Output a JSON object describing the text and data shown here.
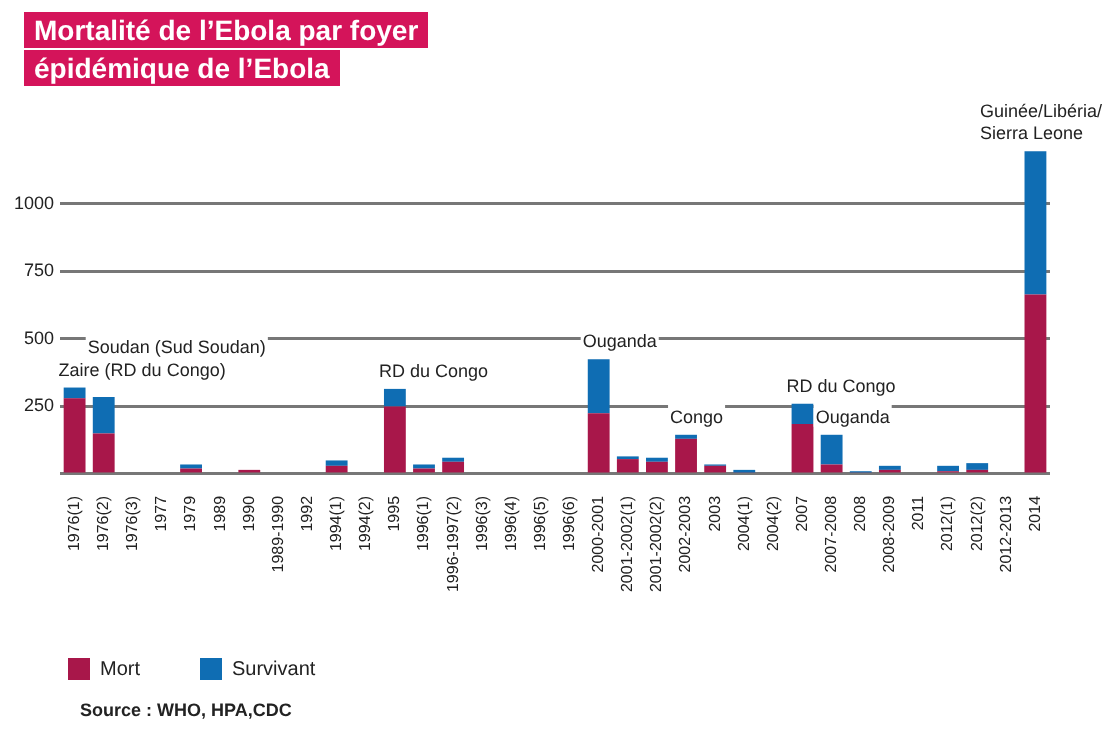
{
  "chart_data": {
    "type": "bar",
    "title": "Mortalité de l’Ebola par foyer épidémique de l’Ebola",
    "stacked": true,
    "categories": [
      "1976(1)",
      "1976(2)",
      "1976(3)",
      "1977",
      "1979",
      "1989",
      "1990",
      "1989-1990",
      "1992",
      "1994(1)",
      "1994(2)",
      "1995",
      "1996(1)",
      "1996-1997(2)",
      "1996(3)",
      "1996(4)",
      "1996(5)",
      "1996(6)",
      "2000-2001",
      "2001-2002(1)",
      "2001-2002(2)",
      "2002-2003",
      "2003",
      "2004(1)",
      "2004(2)",
      "2007",
      "2007-2008",
      "2008",
      "2008-2009",
      "2011",
      "2012(1)",
      "2012(2)",
      "2012-2013",
      "2014"
    ],
    "series": [
      {
        "name": "Mort",
        "color": "#a8174a",
        "values": [
          280,
          150,
          0,
          0,
          20,
          0,
          15,
          0,
          0,
          30,
          0,
          250,
          20,
          45,
          0,
          0,
          0,
          0,
          225,
          55,
          45,
          130,
          30,
          5,
          0,
          185,
          35,
          5,
          15,
          0,
          10,
          15,
          0,
          665
        ]
      },
      {
        "name": "Survivant",
        "color": "#0f6db3",
        "values": [
          40,
          135,
          0,
          0,
          15,
          0,
          0,
          0,
          0,
          20,
          0,
          65,
          15,
          15,
          0,
          0,
          0,
          0,
          200,
          10,
          15,
          15,
          5,
          10,
          0,
          75,
          110,
          5,
          15,
          0,
          20,
          25,
          0,
          530
        ]
      }
    ],
    "ylim": [
      0,
      1200
    ],
    "yticks": [
      {
        "value": 0,
        "label": null
      },
      250,
      500,
      750,
      1000
    ],
    "grid": "y",
    "legend": "bottom left",
    "annotations": [
      {
        "text": "Zaire (RD du Congo)",
        "x": "1976(1)",
        "y": 320
      },
      {
        "text": "Soudan (Sud Soudan)",
        "x": "1976(2)",
        "y": 285
      },
      {
        "text": "RD du Congo",
        "x": "1995",
        "y": 315
      },
      {
        "text": "Ouganda",
        "x": "2000-2001",
        "y": 425
      },
      {
        "text": "Congo",
        "x": "2002-2003",
        "y": 145
      },
      {
        "text": "RD du Congo",
        "x": "2007",
        "y": 260
      },
      {
        "text": "Ouganda",
        "x": "2007-2008",
        "y": 145
      },
      {
        "text": "Guinée/Libéria/\nSierra Leone",
        "x": "2014",
        "y": 1195
      },
      "Source : WHO, HPA,CDC"
    ]
  }
}
